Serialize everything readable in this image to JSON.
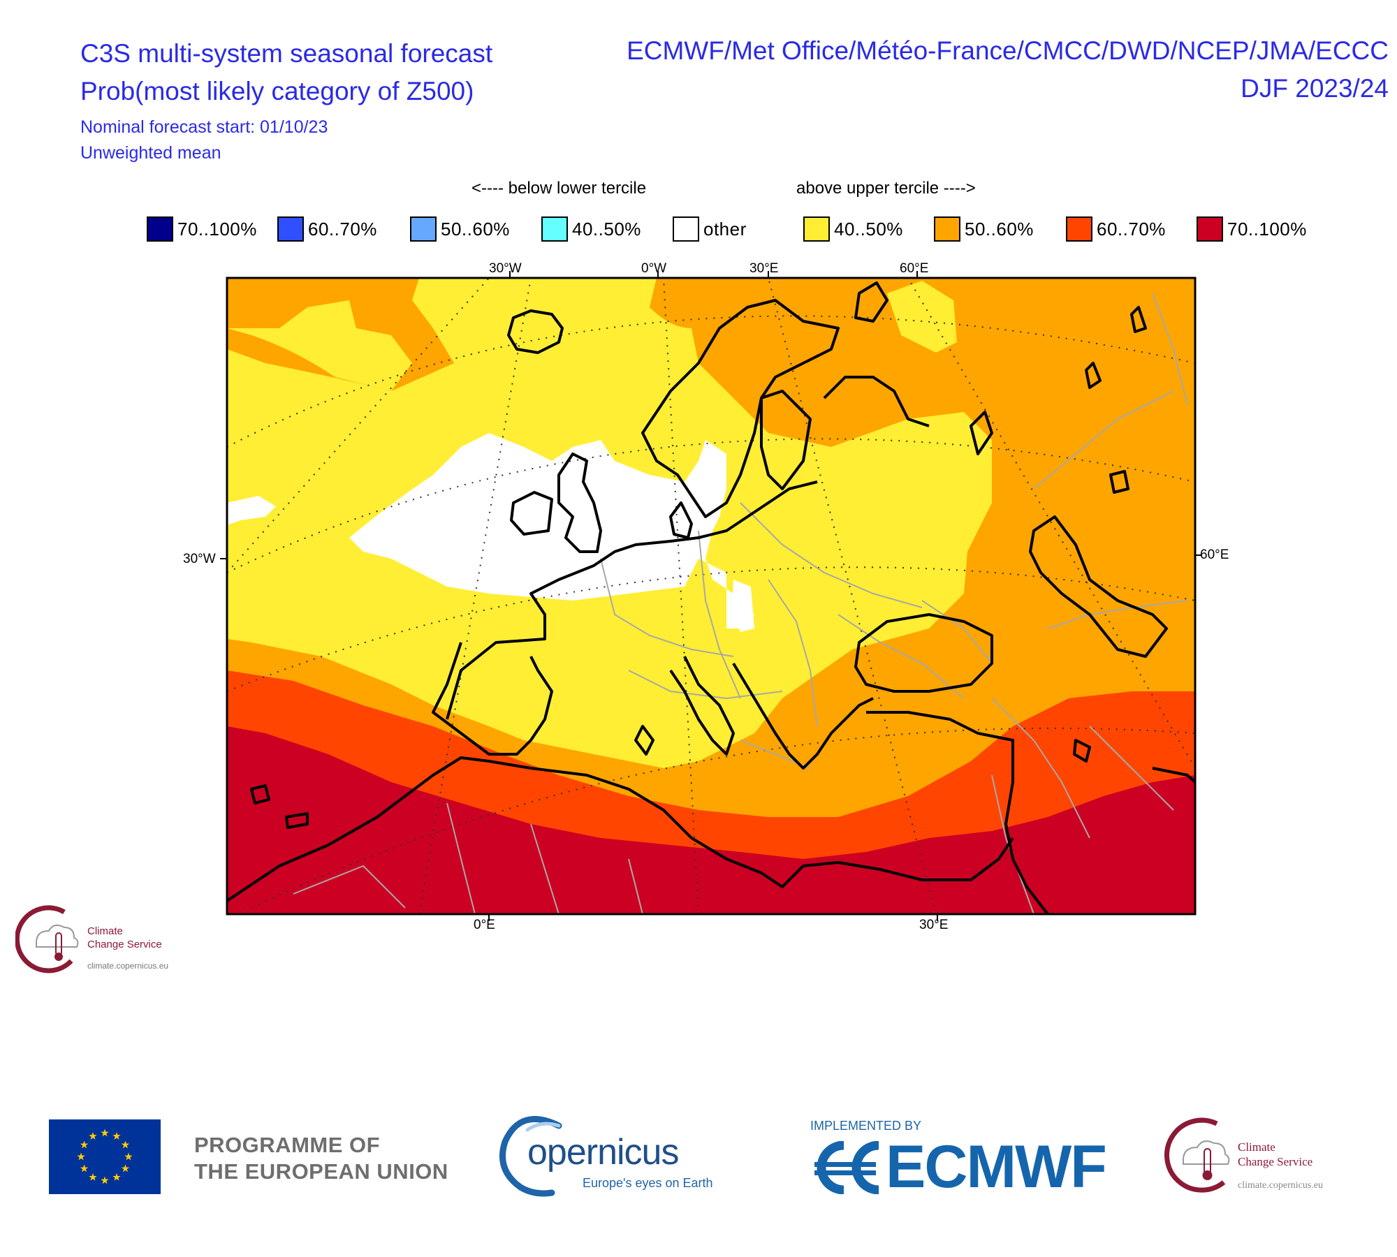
{
  "header": {
    "title_line1": "C3S multi-system seasonal forecast",
    "title_line2": "Prob(most likely category of Z500)",
    "nominal_start": "Nominal forecast start: 01/10/23",
    "weighting": "Unweighted mean",
    "centres": "ECMWF/Met Office/Météo-France/CMCC/DWD/NCEP/JMA/ECCC",
    "season": "DJF 2023/24"
  },
  "legend": {
    "below_caption": "<---- below lower tercile",
    "above_caption": "above upper tercile ---->",
    "items": [
      {
        "label": "70..100%",
        "color": "#00008b"
      },
      {
        "label": "60..70%",
        "color": "#3050ff"
      },
      {
        "label": "50..60%",
        "color": "#66a8ff"
      },
      {
        "label": "40..50%",
        "color": "#66ffff"
      },
      {
        "label": "other",
        "color": "#ffffff"
      },
      {
        "label": "40..50%",
        "color": "#ffee33"
      },
      {
        "label": "50..60%",
        "color": "#ffa500"
      },
      {
        "label": "60..70%",
        "color": "#ff4500"
      },
      {
        "label": "70..100%",
        "color": "#cc0022"
      }
    ]
  },
  "map": {
    "top_labels": [
      "30°W",
      "0°W",
      "30°E",
      "60°E"
    ],
    "left_label": "30°W",
    "right_label": "60°E",
    "bottom_labels": [
      "0°E",
      "30°E"
    ],
    "colors": {
      "other": "#ffffff",
      "p40_50": "#ffee33",
      "p50_60": "#ffa500",
      "p60_70": "#ff4500",
      "p70_100": "#cc0022",
      "coast": "#000000",
      "border": "#a8a8a8",
      "grid": "#333333"
    }
  },
  "logos": {
    "c3s_small": {
      "name_line1": "Climate",
      "name_line2": "Change Service",
      "url": "climate.copernicus.eu"
    },
    "eu_programme_line1": "PROGRAMME OF",
    "eu_programme_line2": "THE EUROPEAN UNION",
    "copernicus_word": "opernicus",
    "copernicus_tagline": "Europe's eyes on Earth",
    "implemented_by": "IMPLEMENTED BY",
    "ecmwf_word": "ECMWF",
    "c3s_large": {
      "name_line1": "Climate",
      "name_line2": "Change Service",
      "url": "climate.copernicus.eu"
    }
  }
}
